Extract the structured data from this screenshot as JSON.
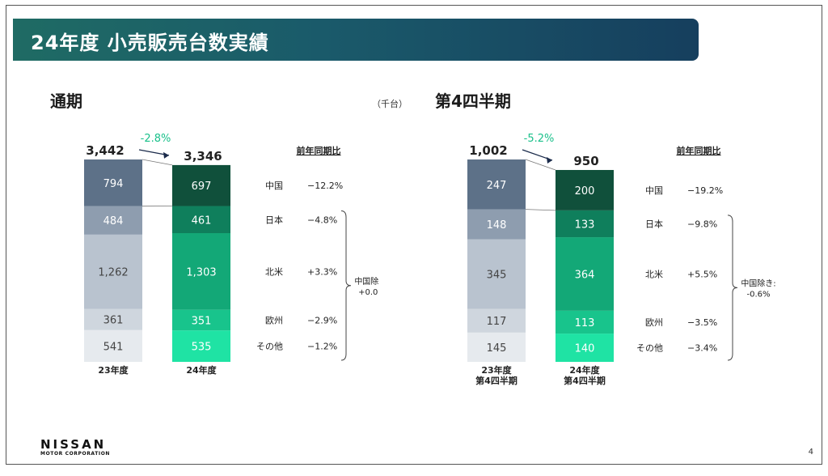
{
  "header": {
    "title": "24年度 小売販売台数実績"
  },
  "unit_label": "（千台）",
  "footer": {
    "logo": "NISSAN",
    "logo_sub": "MOTOR CORPORATION",
    "page_number": "4"
  },
  "chart_data": [
    {
      "type": "bar",
      "stacked": true,
      "title": "通期",
      "categories": [
        "23年度",
        "24年度"
      ],
      "totals": [
        "3,442",
        "3,346"
      ],
      "change": "-2.8%",
      "yoy_header": "前年同期比",
      "series": [
        {
          "name": "中国",
          "values": [
            794,
            697
          ],
          "yoy": "−12.2%"
        },
        {
          "name": "日本",
          "values": [
            484,
            461
          ],
          "yoy": "−4.8%"
        },
        {
          "name": "北米",
          "values": [
            1262,
            1303
          ],
          "yoy": "+3.3%"
        },
        {
          "name": "欧州",
          "values": [
            361,
            351
          ],
          "yoy": "−2.9%"
        },
        {
          "name": "その他",
          "values": [
            541,
            535
          ],
          "yoy": "−1.2%"
        }
      ],
      "value_labels": [
        [
          "794",
          "484",
          "1,262",
          "361",
          "541"
        ],
        [
          "697",
          "461",
          "1,303",
          "351",
          "535"
        ]
      ],
      "bracket_note": [
        "中国除き:",
        "+0.0%"
      ],
      "colors": {
        "prev": [
          "#5d7188",
          "#8e9daf",
          "#b9c3cf",
          "#cfd6de",
          "#e6eaee"
        ],
        "curr": [
          "#10503b",
          "#0f7f5c",
          "#13a877",
          "#18c48c",
          "#1fe3a4"
        ]
      }
    },
    {
      "type": "bar",
      "stacked": true,
      "title": "第4四半期",
      "categories": [
        "23年度\n第4四半期",
        "24年度\n第4四半期"
      ],
      "totals": [
        "1,002",
        "950"
      ],
      "change": "-5.2%",
      "yoy_header": "前年同期比",
      "series": [
        {
          "name": "中国",
          "values": [
            247,
            200
          ],
          "yoy": "−19.2%"
        },
        {
          "name": "日本",
          "values": [
            148,
            133
          ],
          "yoy": "−9.8%"
        },
        {
          "name": "北米",
          "values": [
            345,
            364
          ],
          "yoy": "+5.5%"
        },
        {
          "name": "欧州",
          "values": [
            117,
            113
          ],
          "yoy": "−3.5%"
        },
        {
          "name": "その他",
          "values": [
            145,
            140
          ],
          "yoy": "−3.4%"
        }
      ],
      "value_labels": [
        [
          "247",
          "148",
          "345",
          "117",
          "145"
        ],
        [
          "200",
          "133",
          "364",
          "113",
          "140"
        ]
      ],
      "bracket_note": [
        "中国除き:",
        "-0.6%"
      ],
      "colors": {
        "prev": [
          "#5d7188",
          "#8e9daf",
          "#b9c3cf",
          "#cfd6de",
          "#e6eaee"
        ],
        "curr": [
          "#10503b",
          "#0f7f5c",
          "#13a877",
          "#18c48c",
          "#1fe3a4"
        ]
      }
    }
  ]
}
